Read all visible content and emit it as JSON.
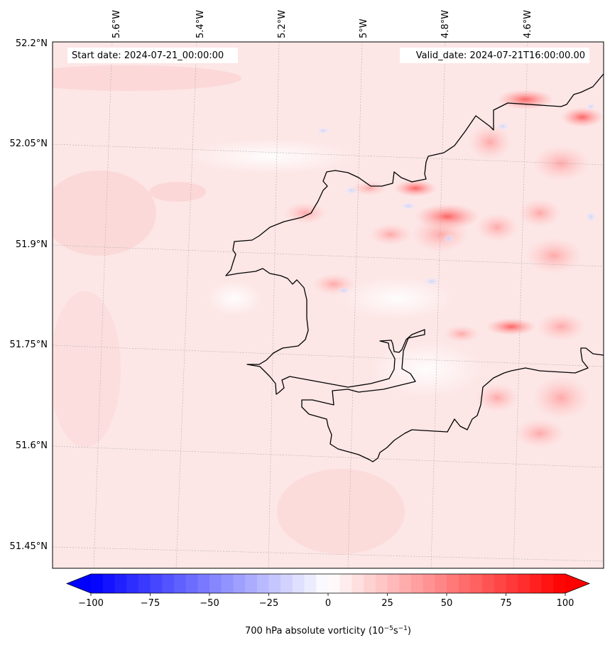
{
  "map": {
    "start_date": "Start date: 2024-07-21_00:00:00",
    "valid_date": "Valid_date: 2024-07-21T16:00:00.00",
    "lon_labels": [
      "5.6°W",
      "5.4°W",
      "5.2°W",
      "5°W",
      "4.8°W",
      "4.6°W"
    ],
    "lat_labels": [
      "52.2°N",
      "52.05°N",
      "51.9°N",
      "51.75°N",
      "51.6°N",
      "51.45°N"
    ],
    "field": "700 hPa absolute vorticity",
    "colors": {
      "negative": "#0000ff",
      "neutral": "#ffffff",
      "positive": "#ff0000",
      "coastline": "#000000",
      "background_field": "#fde3e3"
    }
  },
  "colorbar": {
    "ticks": [
      "−100",
      "−75",
      "−50",
      "−25",
      "0",
      "25",
      "50",
      "75",
      "100"
    ],
    "tick_values": [
      -100,
      -75,
      -50,
      -25,
      0,
      25,
      50,
      75,
      100
    ],
    "min": -100,
    "max": 100,
    "label_main": "700 hPa absolute vorticity (10",
    "label_exp1": "−5",
    "label_mid": "s",
    "label_exp2": "−1",
    "label_end": ")"
  }
}
